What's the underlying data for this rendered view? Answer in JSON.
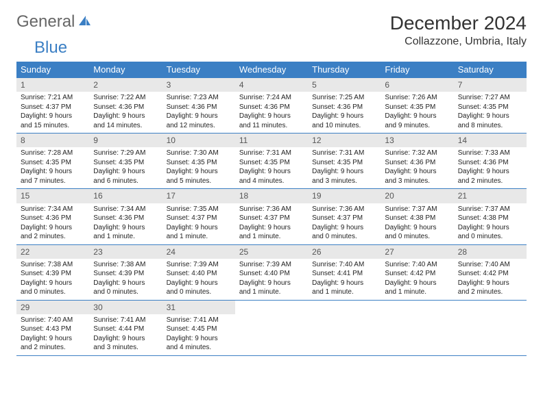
{
  "brand": {
    "text1": "General",
    "text2": "Blue",
    "icon_color": "#3b7fc4"
  },
  "title": "December 2024",
  "location": "Collazzone, Umbria, Italy",
  "colors": {
    "header_bg": "#3b7fc4",
    "header_text": "#ffffff",
    "daynum_bg": "#e8e8e8",
    "border": "#3b7fc4"
  },
  "weekdays": [
    "Sunday",
    "Monday",
    "Tuesday",
    "Wednesday",
    "Thursday",
    "Friday",
    "Saturday"
  ],
  "weeks": [
    [
      {
        "num": "1",
        "sunrise": "Sunrise: 7:21 AM",
        "sunset": "Sunset: 4:37 PM",
        "daylight": "Daylight: 9 hours and 15 minutes."
      },
      {
        "num": "2",
        "sunrise": "Sunrise: 7:22 AM",
        "sunset": "Sunset: 4:36 PM",
        "daylight": "Daylight: 9 hours and 14 minutes."
      },
      {
        "num": "3",
        "sunrise": "Sunrise: 7:23 AM",
        "sunset": "Sunset: 4:36 PM",
        "daylight": "Daylight: 9 hours and 12 minutes."
      },
      {
        "num": "4",
        "sunrise": "Sunrise: 7:24 AM",
        "sunset": "Sunset: 4:36 PM",
        "daylight": "Daylight: 9 hours and 11 minutes."
      },
      {
        "num": "5",
        "sunrise": "Sunrise: 7:25 AM",
        "sunset": "Sunset: 4:36 PM",
        "daylight": "Daylight: 9 hours and 10 minutes."
      },
      {
        "num": "6",
        "sunrise": "Sunrise: 7:26 AM",
        "sunset": "Sunset: 4:35 PM",
        "daylight": "Daylight: 9 hours and 9 minutes."
      },
      {
        "num": "7",
        "sunrise": "Sunrise: 7:27 AM",
        "sunset": "Sunset: 4:35 PM",
        "daylight": "Daylight: 9 hours and 8 minutes."
      }
    ],
    [
      {
        "num": "8",
        "sunrise": "Sunrise: 7:28 AM",
        "sunset": "Sunset: 4:35 PM",
        "daylight": "Daylight: 9 hours and 7 minutes."
      },
      {
        "num": "9",
        "sunrise": "Sunrise: 7:29 AM",
        "sunset": "Sunset: 4:35 PM",
        "daylight": "Daylight: 9 hours and 6 minutes."
      },
      {
        "num": "10",
        "sunrise": "Sunrise: 7:30 AM",
        "sunset": "Sunset: 4:35 PM",
        "daylight": "Daylight: 9 hours and 5 minutes."
      },
      {
        "num": "11",
        "sunrise": "Sunrise: 7:31 AM",
        "sunset": "Sunset: 4:35 PM",
        "daylight": "Daylight: 9 hours and 4 minutes."
      },
      {
        "num": "12",
        "sunrise": "Sunrise: 7:31 AM",
        "sunset": "Sunset: 4:35 PM",
        "daylight": "Daylight: 9 hours and 3 minutes."
      },
      {
        "num": "13",
        "sunrise": "Sunrise: 7:32 AM",
        "sunset": "Sunset: 4:36 PM",
        "daylight": "Daylight: 9 hours and 3 minutes."
      },
      {
        "num": "14",
        "sunrise": "Sunrise: 7:33 AM",
        "sunset": "Sunset: 4:36 PM",
        "daylight": "Daylight: 9 hours and 2 minutes."
      }
    ],
    [
      {
        "num": "15",
        "sunrise": "Sunrise: 7:34 AM",
        "sunset": "Sunset: 4:36 PM",
        "daylight": "Daylight: 9 hours and 2 minutes."
      },
      {
        "num": "16",
        "sunrise": "Sunrise: 7:34 AM",
        "sunset": "Sunset: 4:36 PM",
        "daylight": "Daylight: 9 hours and 1 minute."
      },
      {
        "num": "17",
        "sunrise": "Sunrise: 7:35 AM",
        "sunset": "Sunset: 4:37 PM",
        "daylight": "Daylight: 9 hours and 1 minute."
      },
      {
        "num": "18",
        "sunrise": "Sunrise: 7:36 AM",
        "sunset": "Sunset: 4:37 PM",
        "daylight": "Daylight: 9 hours and 1 minute."
      },
      {
        "num": "19",
        "sunrise": "Sunrise: 7:36 AM",
        "sunset": "Sunset: 4:37 PM",
        "daylight": "Daylight: 9 hours and 0 minutes."
      },
      {
        "num": "20",
        "sunrise": "Sunrise: 7:37 AM",
        "sunset": "Sunset: 4:38 PM",
        "daylight": "Daylight: 9 hours and 0 minutes."
      },
      {
        "num": "21",
        "sunrise": "Sunrise: 7:37 AM",
        "sunset": "Sunset: 4:38 PM",
        "daylight": "Daylight: 9 hours and 0 minutes."
      }
    ],
    [
      {
        "num": "22",
        "sunrise": "Sunrise: 7:38 AM",
        "sunset": "Sunset: 4:39 PM",
        "daylight": "Daylight: 9 hours and 0 minutes."
      },
      {
        "num": "23",
        "sunrise": "Sunrise: 7:38 AM",
        "sunset": "Sunset: 4:39 PM",
        "daylight": "Daylight: 9 hours and 0 minutes."
      },
      {
        "num": "24",
        "sunrise": "Sunrise: 7:39 AM",
        "sunset": "Sunset: 4:40 PM",
        "daylight": "Daylight: 9 hours and 0 minutes."
      },
      {
        "num": "25",
        "sunrise": "Sunrise: 7:39 AM",
        "sunset": "Sunset: 4:40 PM",
        "daylight": "Daylight: 9 hours and 1 minute."
      },
      {
        "num": "26",
        "sunrise": "Sunrise: 7:40 AM",
        "sunset": "Sunset: 4:41 PM",
        "daylight": "Daylight: 9 hours and 1 minute."
      },
      {
        "num": "27",
        "sunrise": "Sunrise: 7:40 AM",
        "sunset": "Sunset: 4:42 PM",
        "daylight": "Daylight: 9 hours and 1 minute."
      },
      {
        "num": "28",
        "sunrise": "Sunrise: 7:40 AM",
        "sunset": "Sunset: 4:42 PM",
        "daylight": "Daylight: 9 hours and 2 minutes."
      }
    ],
    [
      {
        "num": "29",
        "sunrise": "Sunrise: 7:40 AM",
        "sunset": "Sunset: 4:43 PM",
        "daylight": "Daylight: 9 hours and 2 minutes."
      },
      {
        "num": "30",
        "sunrise": "Sunrise: 7:41 AM",
        "sunset": "Sunset: 4:44 PM",
        "daylight": "Daylight: 9 hours and 3 minutes."
      },
      {
        "num": "31",
        "sunrise": "Sunrise: 7:41 AM",
        "sunset": "Sunset: 4:45 PM",
        "daylight": "Daylight: 9 hours and 4 minutes."
      },
      null,
      null,
      null,
      null
    ]
  ]
}
